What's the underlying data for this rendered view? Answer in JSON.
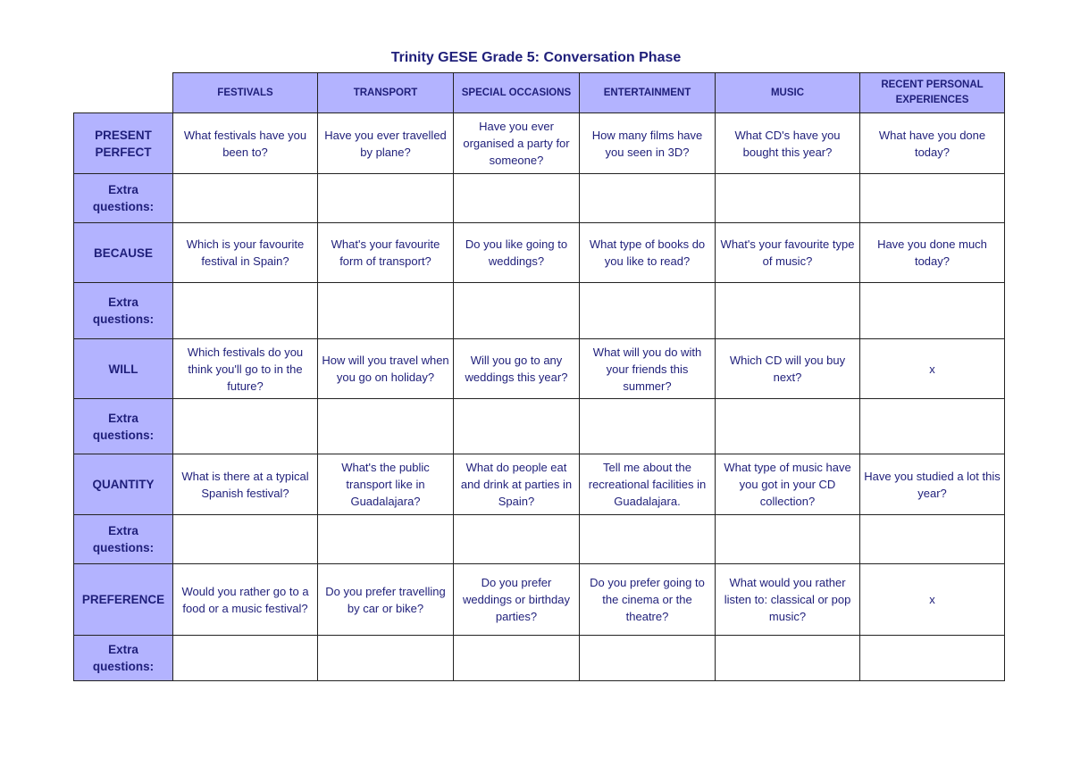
{
  "title": "Trinity GESE Grade 5: Conversation Phase",
  "columns": [
    "FESTIVALS",
    "TRANSPORT",
    "SPECIAL OCCASIONS",
    "ENTERTAINMENT",
    "MUSIC",
    "RECENT PERSONAL EXPERIENCES"
  ],
  "rows": [
    {
      "label": "PRESENT PERFECT",
      "cells": [
        "What festivals have you been to?",
        "Have you ever travelled by plane?",
        "Have you ever organised a party for someone?",
        "How many films have you seen in 3D?",
        "What CD's have you bought this year?",
        "What have you done today?"
      ]
    },
    {
      "label": "Extra questions:",
      "cells": [
        "",
        "",
        "",
        "",
        "",
        ""
      ]
    },
    {
      "label": "BECAUSE",
      "cells": [
        "Which is your favourite festival in Spain?",
        "What's your favourite form of transport?",
        "Do you like going to weddings?",
        "What type of books do you like to read?",
        "What's your favourite type of music?",
        "Have you done much today?"
      ]
    },
    {
      "label": "Extra questions:",
      "cells": [
        "",
        "",
        "",
        "",
        "",
        ""
      ]
    },
    {
      "label": "WILL",
      "cells": [
        "Which festivals do you think you'll go to in the future?",
        "How will you travel when you go on holiday?",
        "Will you go to any weddings this year?",
        "What will you do with your friends this summer?",
        "Which CD will you buy next?",
        "x"
      ]
    },
    {
      "label": "Extra questions:",
      "cells": [
        "",
        "",
        "",
        "",
        "",
        ""
      ]
    },
    {
      "label": "QUANTITY",
      "cells": [
        "What is there at a typical Spanish festival?",
        "What's the public transport like in Guadalajara?",
        "What do people eat and drink at parties in Spain?",
        "Tell me about the recreational facilities in Guadalajara.",
        "What type of music have you got in your CD collection?",
        "Have you studied a lot this year?"
      ]
    },
    {
      "label": "Extra questions:",
      "cells": [
        "",
        "",
        "",
        "",
        "",
        ""
      ]
    },
    {
      "label": "PREFERENCE",
      "cells": [
        "Would you rather go to a food or a music festival?",
        "Do you prefer travelling by car or bike?",
        "Do you prefer weddings or birthday parties?",
        "Do you prefer going to the cinema or the theatre?",
        "What would you rather listen to: classical or pop music?",
        "x"
      ]
    },
    {
      "label": "Extra questions:",
      "cells": [
        "",
        "",
        "",
        "",
        "",
        ""
      ]
    }
  ]
}
